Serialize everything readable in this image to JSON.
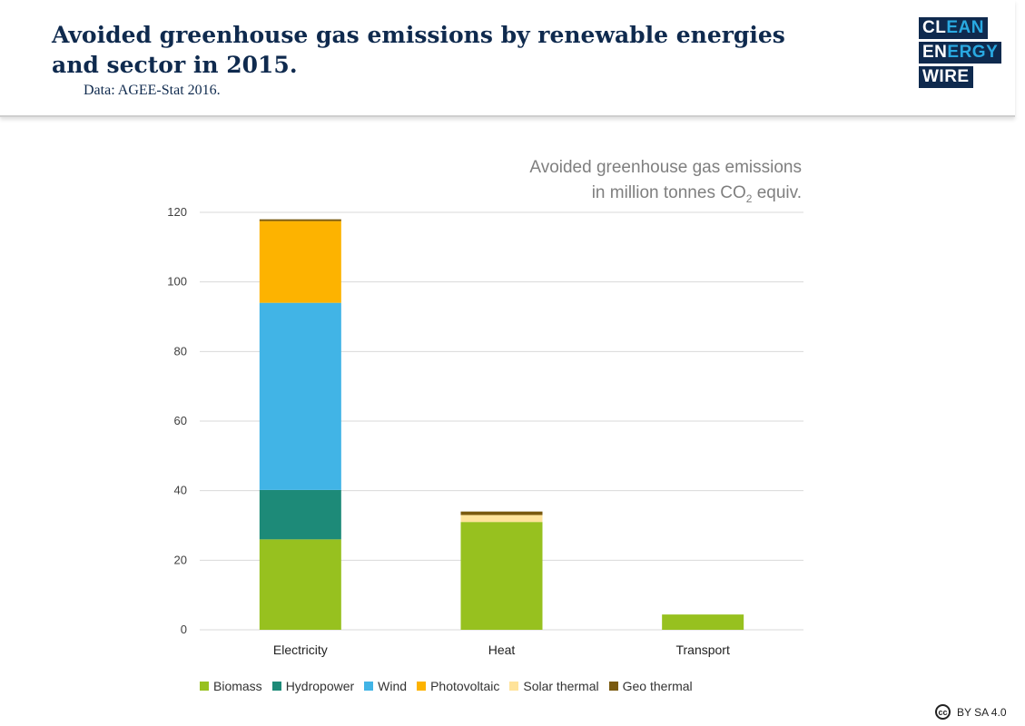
{
  "header": {
    "title": "Avoided greenhouse gas emissions by renewable energies and sector in 2015.",
    "source": "Data: AGEE-Stat 2016."
  },
  "logo": {
    "line1_a": "CL",
    "line1_b": "EAN",
    "line2_a": "EN",
    "line2_b": "ERGY",
    "line3": "WIRE"
  },
  "unit_note": {
    "line1": "Avoided greenhouse gas emissions",
    "line2_pre": "in million tonnes CO",
    "line2_sub": "2",
    "line2_post": " equiv."
  },
  "license": {
    "badge": "cc",
    "text": "BY SA 4.0"
  },
  "colors": {
    "title": "#0f2a4e",
    "logo_accent": "#29a9e1",
    "grid": "#d9d9d9"
  },
  "chart_data": {
    "type": "bar",
    "stacked": true,
    "categories": [
      "Electricity",
      "Heat",
      "Transport"
    ],
    "series": [
      {
        "name": "Biomass",
        "color": "#97c11f",
        "values": [
          26.0,
          31.0,
          4.4
        ]
      },
      {
        "name": "Hydropower",
        "color": "#1d8a78",
        "values": [
          14.2,
          0,
          0
        ]
      },
      {
        "name": "Wind",
        "color": "#41b4e6",
        "values": [
          53.8,
          0,
          0
        ]
      },
      {
        "name": "Photovoltaic",
        "color": "#fdb300",
        "values": [
          23.5,
          0,
          0
        ]
      },
      {
        "name": "Solar thermal",
        "color": "#ffe39a",
        "values": [
          0,
          2.0,
          0
        ]
      },
      {
        "name": "Geo thermal",
        "color": "#7a5a0f",
        "values": [
          0.5,
          1.0,
          0
        ]
      }
    ],
    "ylim": [
      0,
      120
    ],
    "yticks": [
      0,
      20,
      40,
      60,
      80,
      100,
      120
    ],
    "grid": true,
    "legend": "bottom"
  }
}
